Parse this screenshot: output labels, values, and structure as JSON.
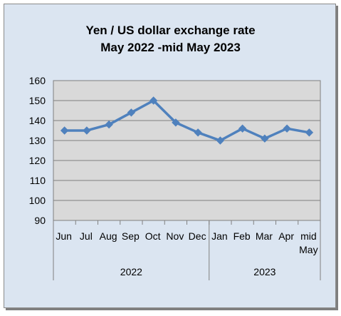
{
  "chart_data": {
    "type": "line",
    "title": "Yen / US dollar exchange rate",
    "subtitle": "May 2022  -mid May 2023",
    "categories": [
      "Jun",
      "Jul",
      "Aug",
      "Sep",
      "Oct",
      "Nov",
      "Dec",
      "Jan",
      "Feb",
      "Mar",
      "Apr",
      "mid May"
    ],
    "category_lines": [
      [
        "Jun"
      ],
      [
        "Jul"
      ],
      [
        "Aug"
      ],
      [
        "Sep"
      ],
      [
        "Oct"
      ],
      [
        "Nov"
      ],
      [
        "Dec"
      ],
      [
        "Jan"
      ],
      [
        "Feb"
      ],
      [
        "Mar"
      ],
      [
        "Apr"
      ],
      [
        "mid",
        "May"
      ]
    ],
    "groups": [
      {
        "label": "2022",
        "count": 7
      },
      {
        "label": "2023",
        "count": 5
      }
    ],
    "series": [
      {
        "values": [
          135,
          135,
          138,
          144,
          150,
          139,
          134,
          130,
          136,
          131,
          136,
          134
        ]
      }
    ],
    "ylim": [
      90,
      160
    ],
    "yticks": [
      90,
      100,
      110,
      120,
      130,
      140,
      150,
      160
    ],
    "grid": true,
    "colors": {
      "line": "#4f81bd",
      "plot_bg": "#d9d9d9",
      "frame_bg": "#dbe5f1",
      "grid": "#7f7f7f"
    }
  }
}
